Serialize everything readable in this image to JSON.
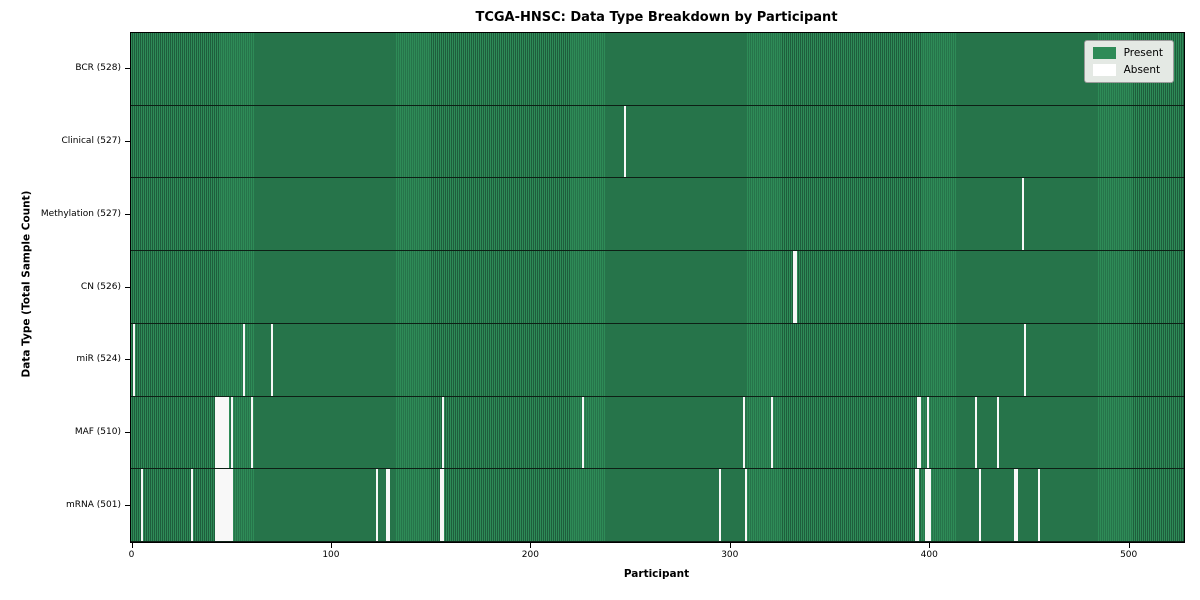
{
  "chart_data": {
    "type": "heatmap",
    "title": "TCGA-HNSC: Data Type Breakdown by Participant",
    "xlabel": "Participant",
    "ylabel": "Data Type (Total Sample Count)",
    "n_participants": 528,
    "x_ticks": [
      0,
      100,
      200,
      300,
      400,
      500
    ],
    "legend": [
      {
        "label": "Present",
        "color": "#2e8b57"
      },
      {
        "label": "Absent",
        "color": "#ffffff"
      }
    ],
    "colors": {
      "present": "#2e8b57",
      "present_edge": "#1e5e3c",
      "absent": "#f8f8f8",
      "row_divider": "#0d1f15"
    },
    "rows": [
      {
        "label": "BCR (528)",
        "data_type": "BCR",
        "total": 528,
        "absent_participants": []
      },
      {
        "label": "Clinical (527)",
        "data_type": "Clinical",
        "total": 527,
        "absent_participants": [
          247
        ]
      },
      {
        "label": "Methylation (527)",
        "data_type": "Methylation",
        "total": 527,
        "absent_participants": [
          447
        ]
      },
      {
        "label": "CN (526)",
        "data_type": "CN",
        "total": 526,
        "absent_participants": [
          332,
          333
        ]
      },
      {
        "label": "miR (524)",
        "data_type": "miR",
        "total": 524,
        "absent_participants": [
          1,
          56,
          70,
          448
        ]
      },
      {
        "label": "MAF (510)",
        "data_type": "MAF",
        "total": 510,
        "absent_participants": [
          42,
          43,
          44,
          45,
          46,
          47,
          48,
          50,
          60,
          156,
          226,
          307,
          321,
          394,
          395,
          399,
          423,
          434
        ]
      },
      {
        "label": "mRNA (501)",
        "data_type": "mRNA",
        "total": 501,
        "absent_participants": [
          5,
          30,
          42,
          43,
          44,
          45,
          46,
          47,
          48,
          49,
          50,
          123,
          128,
          129,
          155,
          156,
          295,
          308,
          393,
          394,
          398,
          399,
          400,
          425,
          443,
          444,
          455
        ]
      }
    ]
  }
}
